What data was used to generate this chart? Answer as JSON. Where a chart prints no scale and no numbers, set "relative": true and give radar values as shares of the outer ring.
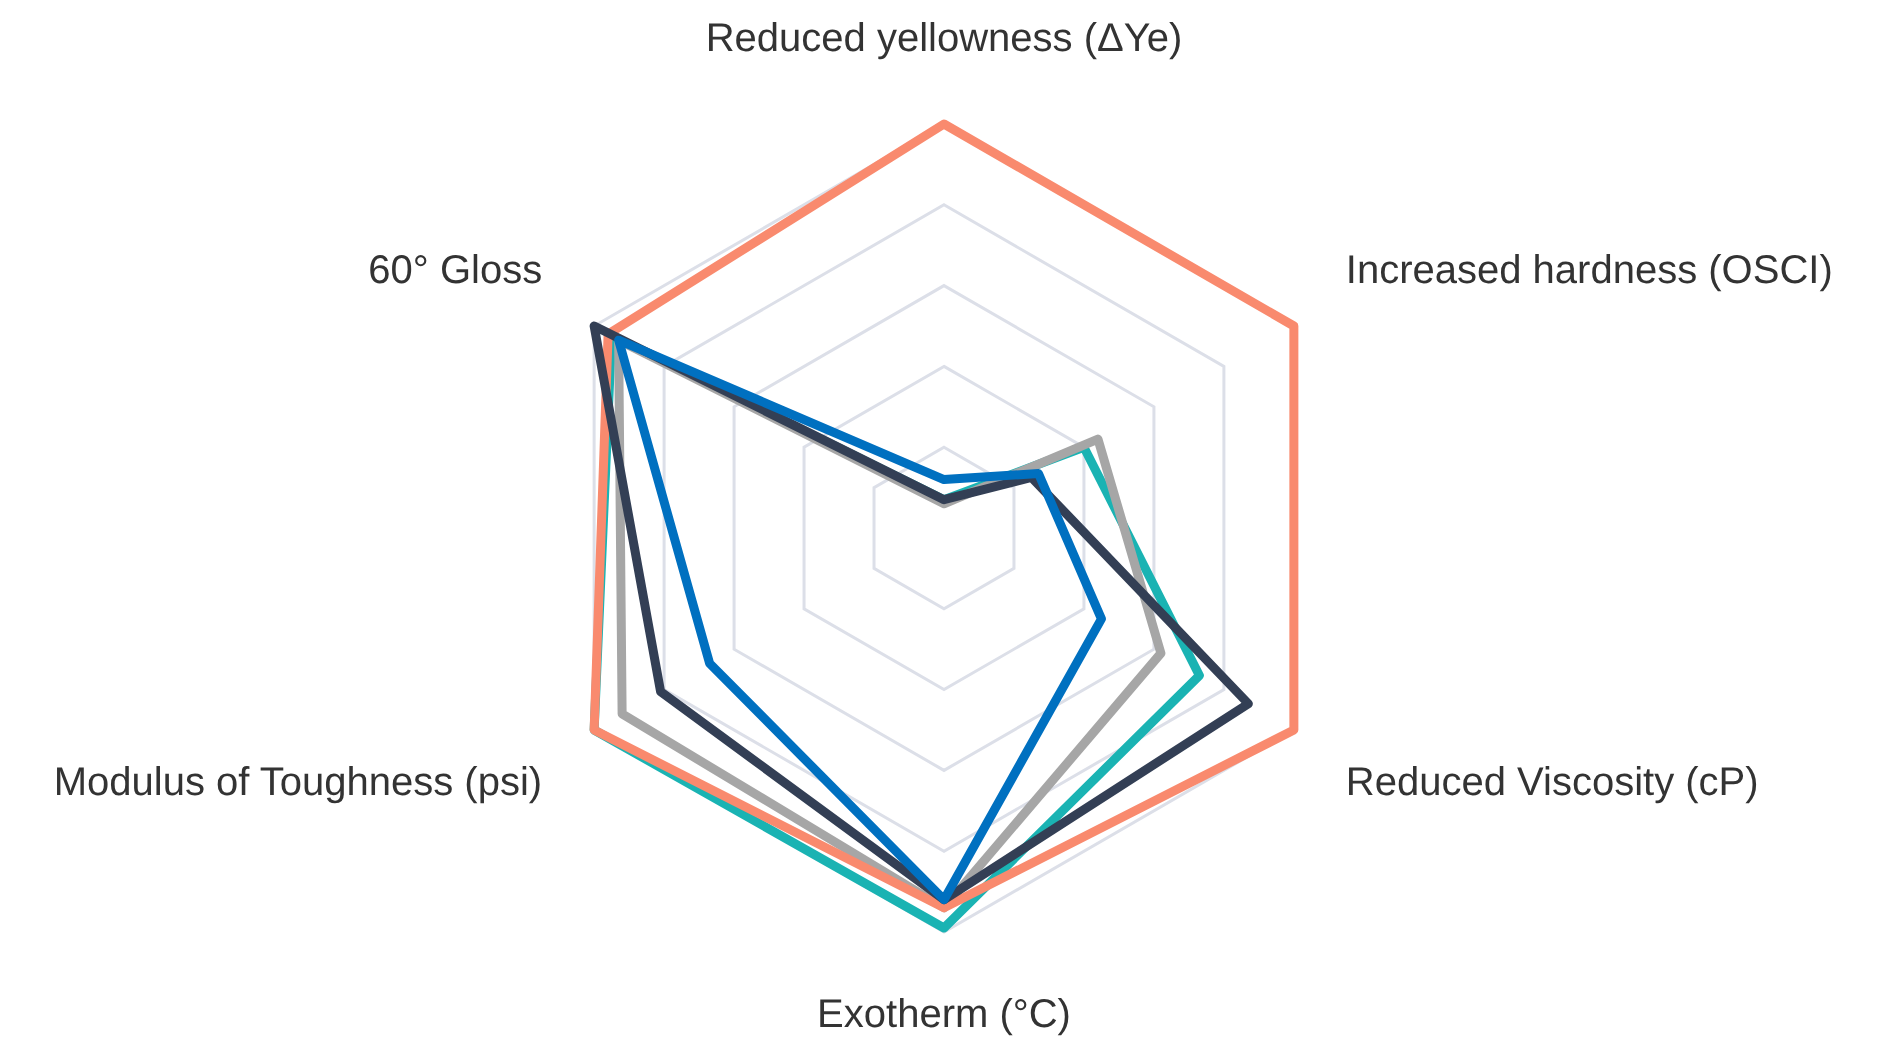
{
  "chart_data": {
    "type": "radar",
    "relative": true,
    "grid": true,
    "marker": "none",
    "line_style": "solid",
    "categories": [
      "Reduced yellowness (ΔYe)",
      "Increased hardness (OSCI)",
      "Reduced Viscosity (cP)",
      "Exotherm (°C)",
      "Modulus of Toughness (psi)",
      "60° Gloss"
    ],
    "series": [
      {
        "color": "#1ab3b3",
        "values": [
          0.07,
          0.4,
          0.73,
          0.99,
          1,
          0.95
        ]
      },
      {
        "color": "#a6a6a6",
        "values": [
          0.06,
          0.44,
          0.62,
          0.94,
          0.92,
          0.93
        ]
      },
      {
        "color": "#f98a6e",
        "values": [
          1,
          1,
          1,
          0.94,
          1,
          0.96
        ]
      },
      {
        "color": "#333f55",
        "values": [
          0.07,
          0.25,
          0.87,
          0.92,
          0.81,
          1
        ]
      },
      {
        "color": "#0070c0",
        "values": [
          0.12,
          0.27,
          0.45,
          0.92,
          0.67,
          0.93
        ]
      }
    ]
  }
}
